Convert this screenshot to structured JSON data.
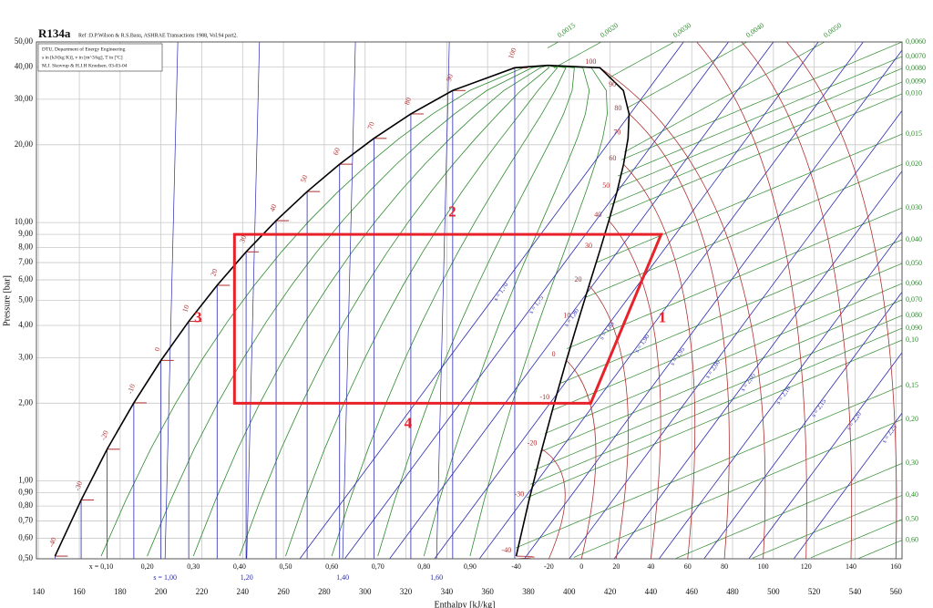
{
  "chart_data": {
    "type": "ph-diagram",
    "title": "R134a",
    "subtitle": "Ref :D.P.Wilson & R.S.Basu, ASHRAE Transactions 1988, Vol.94 part2.",
    "notes": [
      "DTU, Department of Energy Engineering",
      "s in [kJ/(kg K)], v in [m^3/kg], T in [ºC]",
      "M.J. Skovrup & H.J.H Knudsen. 03-03-04"
    ],
    "xlabel": "Enthalpy [kJ/kg]",
    "ylabel": "Pressure [bar]",
    "xlim": [
      139,
      563
    ],
    "ylim": [
      0.5,
      50
    ],
    "log_y": true,
    "grid": true,
    "xticks": [
      140,
      160,
      180,
      200,
      220,
      240,
      260,
      280,
      300,
      320,
      340,
      360,
      380,
      400,
      420,
      440,
      460,
      480,
      500,
      520,
      540,
      560
    ],
    "yticks": [
      {
        "value": 50,
        "label": "50,00"
      },
      {
        "value": 40,
        "label": "40,00"
      },
      {
        "value": 30,
        "label": "30,00"
      },
      {
        "value": 20,
        "label": "20,00"
      },
      {
        "value": 10,
        "label": "10,00"
      },
      {
        "value": 9,
        "label": "9,00"
      },
      {
        "value": 8,
        "label": "8,00"
      },
      {
        "value": 7,
        "label": "7,00"
      },
      {
        "value": 6,
        "label": "6,00"
      },
      {
        "value": 5,
        "label": "5,00"
      },
      {
        "value": 4,
        "label": "4,00"
      },
      {
        "value": 3,
        "label": "3,00"
      },
      {
        "value": 2,
        "label": "2,00"
      },
      {
        "value": 1,
        "label": "1,00"
      },
      {
        "value": 0.9,
        "label": "0,90"
      },
      {
        "value": 0.8,
        "label": "0,80"
      },
      {
        "value": 0.7,
        "label": "0,70"
      },
      {
        "value": 0.6,
        "label": "0,60"
      },
      {
        "value": 0.5,
        "label": "0,50"
      }
    ],
    "saturation": {
      "temps": [
        -40,
        -30,
        -20,
        -10,
        0,
        10,
        20,
        30,
        40,
        50,
        60,
        70,
        80,
        90,
        100
      ],
      "p": [
        0.512,
        0.844,
        1.327,
        2.006,
        2.928,
        4.146,
        5.717,
        7.702,
        10.17,
        13.18,
        16.82,
        21.17,
        26.33,
        32.44,
        39.72
      ],
      "h_liquid": [
        148.1,
        160.9,
        173.6,
        186.7,
        200.0,
        213.6,
        227.5,
        241.7,
        256.4,
        271.6,
        287.5,
        304.3,
        322.4,
        342.9,
        373.3
      ],
      "h_vapor": [
        374.0,
        380.3,
        386.6,
        392.7,
        398.6,
        404.3,
        409.7,
        414.8,
        419.4,
        423.4,
        426.6,
        428.8,
        429.3,
        426.5,
        415.0
      ],
      "critical": {
        "h": 389.6,
        "p": 40.59
      },
      "color": "#000000"
    },
    "quality": [
      {
        "value": 0.1,
        "label": "x = 0,10"
      },
      {
        "value": 0.2,
        "label": "0,20"
      },
      {
        "value": 0.3,
        "label": "0,30"
      },
      {
        "value": 0.4,
        "label": "0,40"
      },
      {
        "value": 0.5,
        "label": "0,50"
      },
      {
        "value": 0.6,
        "label": "0,60"
      },
      {
        "value": 0.7,
        "label": "0,70"
      },
      {
        "value": 0.8,
        "label": "0,80"
      },
      {
        "value": 0.9,
        "label": "0,90"
      }
    ],
    "liquid_isentropes": {
      "s": [
        {
          "value": 1.0,
          "label": "s = 1,00"
        },
        {
          "value": 1.2,
          "label": "1,20"
        },
        {
          "value": 1.4,
          "label": "1,40"
        },
        {
          "value": 1.6,
          "label": "1,60"
        }
      ],
      "h_bottom": [
        202,
        242,
        289,
        335
      ],
      "color": "#2b2bb0"
    },
    "isentropes": {
      "s": [
        {
          "value": 1.7,
          "label": "s = 1,70"
        },
        {
          "value": 1.75,
          "label": "s = 1,75"
        },
        {
          "value": 1.8,
          "label": "s = 1,80"
        },
        {
          "value": 1.85,
          "label": "s = 1,85"
        },
        {
          "value": 1.9,
          "label": "s = 1,90"
        },
        {
          "value": 1.95,
          "label": "s = 1,95"
        },
        {
          "value": 2.0,
          "label": "s = 2,00"
        },
        {
          "value": 2.05,
          "label": "s = 2,05"
        },
        {
          "value": 2.1,
          "label": "s = 2,10"
        },
        {
          "value": 2.15,
          "label": "s = 2,15"
        },
        {
          "value": 2.2,
          "label": "s = 2,20"
        },
        {
          "value": 2.25,
          "label": "s = 2,25"
        }
      ],
      "h_bottom": [
        268,
        290,
        312,
        334,
        356,
        378,
        400,
        422,
        444,
        466,
        488,
        510
      ],
      "h_top": [
        456,
        478,
        500,
        522,
        544,
        566,
        588,
        610,
        632,
        654,
        676,
        698
      ],
      "color": "#2b2bb0"
    },
    "isotherms": {
      "t": [
        -40,
        -20,
        0,
        20,
        40,
        60,
        80,
        100,
        120,
        140,
        160
      ],
      "h_bottom": [
        374,
        390,
        406,
        423,
        440,
        458,
        476,
        495,
        516,
        538,
        560
      ],
      "color": "#b03030"
    },
    "isochores": {
      "top": [
        {
          "value": 0.0015,
          "label": "0,0015"
        },
        {
          "value": 0.002,
          "label": "0,0020"
        },
        {
          "value": 0.003,
          "label": "0,0030"
        },
        {
          "value": 0.004,
          "label": "0,0040"
        },
        {
          "value": 0.005,
          "label": "0,0050"
        }
      ],
      "h_top": [
        394.7,
        415.7,
        451.4,
        487.1,
        525.1
      ],
      "right": [
        {
          "value": 0.006,
          "label": "0,0060"
        },
        {
          "value": 0.007,
          "label": "0,0070"
        },
        {
          "value": 0.008,
          "label": "0,0080"
        },
        {
          "value": 0.009,
          "label": "0,0090"
        },
        {
          "value": 0.01,
          "label": "0,010"
        },
        {
          "value": 0.015,
          "label": "0,015"
        },
        {
          "value": 0.02,
          "label": "0,020"
        },
        {
          "value": 0.03,
          "label": "0,030"
        },
        {
          "value": 0.04,
          "label": "0,040"
        },
        {
          "value": 0.05,
          "label": "0,050"
        },
        {
          "value": 0.06,
          "label": "0,060"
        },
        {
          "value": 0.07,
          "label": "0,070"
        },
        {
          "value": 0.08,
          "label": "0,080"
        },
        {
          "value": 0.09,
          "label": "0,090"
        },
        {
          "value": 0.1,
          "label": "0,10"
        },
        {
          "value": 0.15,
          "label": "0,15"
        },
        {
          "value": 0.2,
          "label": "0,20"
        },
        {
          "value": 0.3,
          "label": "0,30"
        },
        {
          "value": 0.4,
          "label": "0,40"
        },
        {
          "value": 0.5,
          "label": "0,50"
        },
        {
          "value": 0.6,
          "label": "0,60"
        }
      ],
      "p_right": [
        50,
        43.9,
        39.5,
        35.0,
        31.5,
        22.0,
        16.8,
        11.4,
        8.58,
        6.95,
        5.81,
        5.02,
        4.37,
        3.9,
        3.51,
        2.34,
        1.73,
        1.17,
        0.88,
        0.71,
        0.59
      ],
      "color": "#2e8b2e"
    },
    "cycle": {
      "h": [
        236,
        445,
        410.5,
        236
      ],
      "p": [
        9,
        9,
        2,
        2
      ],
      "labels": [
        "2",
        "1",
        "4",
        "3"
      ],
      "color": "#e8222a"
    }
  }
}
